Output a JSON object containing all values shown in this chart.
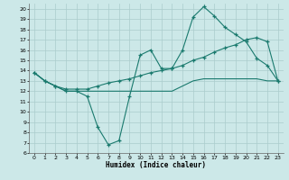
{
  "xlabel": "Humidex (Indice chaleur)",
  "bg_color": "#cce8e8",
  "grid_color": "#aacccc",
  "line_color": "#1a7a6e",
  "xlim": [
    -0.5,
    23.5
  ],
  "ylim": [
    6,
    20.5
  ],
  "yticks": [
    6,
    7,
    8,
    9,
    10,
    11,
    12,
    13,
    14,
    15,
    16,
    17,
    18,
    19,
    20
  ],
  "xticks": [
    0,
    1,
    2,
    3,
    4,
    5,
    6,
    7,
    8,
    9,
    10,
    11,
    12,
    13,
    14,
    15,
    16,
    17,
    18,
    19,
    20,
    21,
    22,
    23
  ],
  "line1_x": [
    0,
    1,
    2,
    3,
    4,
    5,
    6,
    7,
    8,
    9,
    10,
    11,
    12,
    13,
    14,
    15,
    16,
    17,
    18,
    19,
    20,
    21,
    22,
    23
  ],
  "line1_y": [
    13.8,
    13.0,
    12.5,
    12.0,
    12.0,
    11.5,
    8.5,
    6.8,
    7.2,
    11.5,
    15.5,
    16.0,
    14.2,
    14.2,
    16.0,
    19.2,
    20.2,
    19.3,
    18.2,
    17.5,
    16.8,
    15.2,
    14.5,
    13.0
  ],
  "line2_x": [
    0,
    1,
    2,
    3,
    4,
    5,
    6,
    7,
    8,
    9,
    10,
    11,
    12,
    13,
    14,
    15,
    16,
    17,
    18,
    19,
    20,
    21,
    22,
    23
  ],
  "line2_y": [
    13.8,
    13.0,
    12.5,
    12.0,
    12.0,
    12.0,
    12.0,
    12.0,
    12.0,
    12.0,
    12.0,
    12.0,
    12.0,
    12.0,
    12.5,
    13.0,
    13.2,
    13.2,
    13.2,
    13.2,
    13.2,
    13.2,
    13.0,
    13.0
  ],
  "line3_x": [
    0,
    1,
    2,
    3,
    4,
    5,
    6,
    7,
    8,
    9,
    10,
    11,
    12,
    13,
    14,
    15,
    16,
    17,
    18,
    19,
    20,
    21,
    22,
    23
  ],
  "line3_y": [
    13.8,
    13.0,
    12.5,
    12.2,
    12.2,
    12.2,
    12.5,
    12.8,
    13.0,
    13.2,
    13.5,
    13.8,
    14.0,
    14.2,
    14.5,
    15.0,
    15.3,
    15.8,
    16.2,
    16.5,
    17.0,
    17.2,
    16.8,
    13.0
  ]
}
